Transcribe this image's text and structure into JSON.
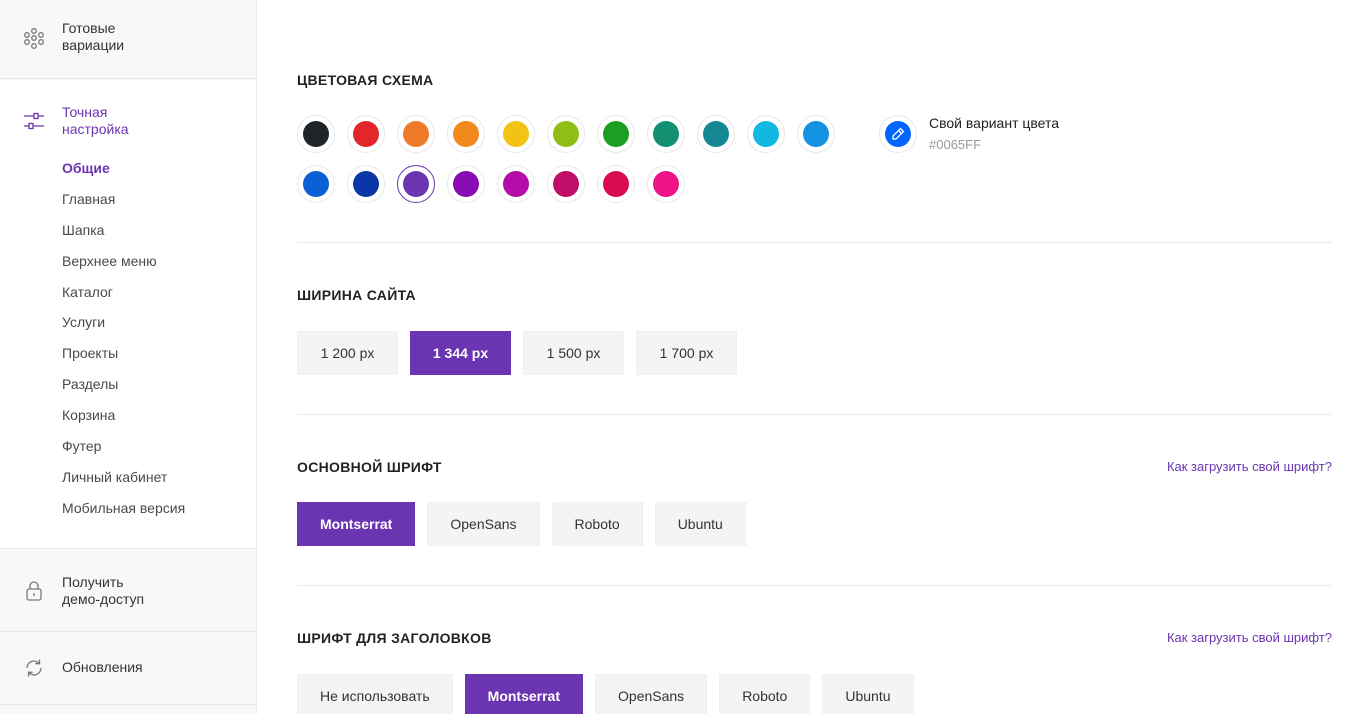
{
  "sidebar": {
    "variations": {
      "title": "Готовые\nвариации",
      "icon": "variations-icon"
    },
    "fine_tuning": {
      "title": "Точная\nнастройка",
      "icon": "sliders-icon",
      "items": [
        {
          "label": "Общие",
          "active": true
        },
        {
          "label": "Главная"
        },
        {
          "label": "Шапка"
        },
        {
          "label": "Верхнее меню"
        },
        {
          "label": "Каталог"
        },
        {
          "label": "Услуги"
        },
        {
          "label": "Проекты"
        },
        {
          "label": "Разделы"
        },
        {
          "label": "Корзина"
        },
        {
          "label": "Футер"
        },
        {
          "label": "Личный кабинет"
        },
        {
          "label": "Мобильная версия"
        }
      ]
    },
    "demo": {
      "title": "Получить\nдемо-доступ",
      "icon": "lock-icon"
    },
    "updates": {
      "title": "Обновления",
      "icon": "refresh-icon"
    }
  },
  "color_scheme": {
    "title": "Цветовая схема",
    "colors": [
      "#1f2429",
      "#e2262b",
      "#ef7a2a",
      "#f2891c",
      "#f2c315",
      "#8fbf14",
      "#1c9e22",
      "#129071",
      "#158893",
      "#13b8e2",
      "#1591e2",
      "#0c5fd4",
      "#0c36a8",
      "#6b34b0",
      "#8a0cb4",
      "#b40ca8",
      "#c00c6a",
      "#d90c50",
      "#ee1287"
    ],
    "selected_color": "#6b34b0",
    "custom": {
      "label": "Свой вариант цвета",
      "hex": "#0065FF",
      "color": "#0065ff",
      "icon": "eyedropper-icon"
    }
  },
  "site_width": {
    "title": "Ширина сайта",
    "options": [
      "1 200 px",
      "1 344 px",
      "1 500 px",
      "1 700 px"
    ],
    "selected": "1 344 px"
  },
  "main_font": {
    "title": "Основной шрифт",
    "help_link": "Как загрузить свой шрифт?",
    "options": [
      "Montserrat",
      "OpenSans",
      "Roboto",
      "Ubuntu"
    ],
    "selected": "Montserrat"
  },
  "heading_font": {
    "title": "Шрифт для заголовков",
    "help_link": "Как загрузить свой шрифт?",
    "options": [
      "Не использовать",
      "Montserrat",
      "OpenSans",
      "Roboto",
      "Ubuntu"
    ],
    "selected": "Montserrat"
  }
}
